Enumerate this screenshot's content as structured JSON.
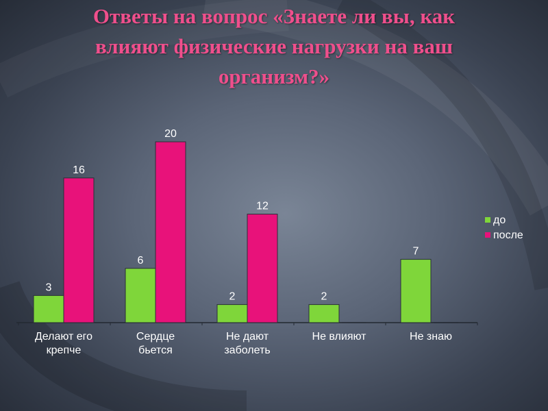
{
  "slide": {
    "title_lines": [
      "Ответы на вопрос «Знаете ли вы, как",
      "влияют физические нагрузки на ваш",
      "организм?»"
    ]
  },
  "colors": {
    "title": "#ef4f8c",
    "series": [
      "#7fd63a",
      "#e8127a"
    ]
  },
  "chart_data": {
    "type": "bar",
    "categories": [
      [
        "Делают его",
        "крепче"
      ],
      [
        "Сердце",
        "бьется"
      ],
      [
        "Не дают",
        "заболеть"
      ],
      [
        "Не влияют"
      ],
      [
        "Не знаю"
      ]
    ],
    "series": [
      {
        "name": "до",
        "values": [
          3,
          6,
          2,
          2,
          7
        ]
      },
      {
        "name": "после",
        "values": [
          16,
          20,
          12,
          null,
          null
        ]
      }
    ],
    "ylim": [
      0,
      20
    ],
    "data_labels": true,
    "legend": "right",
    "grid": false
  }
}
